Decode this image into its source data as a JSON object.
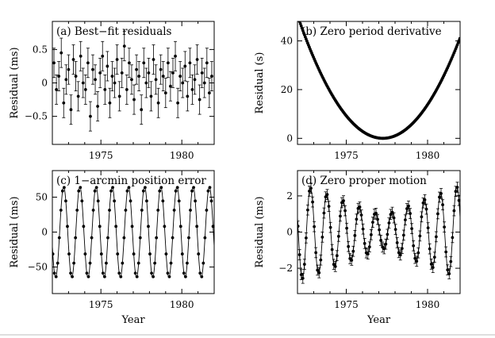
{
  "chart_data": [
    {
      "id": "a",
      "type": "scatter",
      "title": "(a) Best−fit residuals",
      "xlabel": "",
      "ylabel": "Residual (ms)",
      "xlim": [
        1972.0,
        1982.0
      ],
      "ylim": [
        -0.92,
        0.92
      ],
      "xticks": [
        1975,
        1980
      ],
      "yticks": [
        0.5,
        0,
        -0.5
      ],
      "xticklabels": [
        "1975",
        "1980"
      ],
      "yticklabels": [
        "0.5",
        "0",
        "−0.5"
      ],
      "model": {
        "kind": "noise",
        "amplitude": 0.0
      },
      "x": [
        1972.1,
        1972.25,
        1972.4,
        1972.55,
        1972.7,
        1972.85,
        1973.0,
        1973.15,
        1973.3,
        1973.45,
        1973.6,
        1973.75,
        1973.9,
        1974.05,
        1974.2,
        1974.35,
        1974.5,
        1974.65,
        1974.8,
        1974.95,
        1975.1,
        1975.25,
        1975.4,
        1975.55,
        1975.7,
        1975.85,
        1976.0,
        1976.15,
        1976.3,
        1976.45,
        1976.6,
        1976.75,
        1976.9,
        1977.05,
        1977.2,
        1977.35,
        1977.5,
        1977.65,
        1977.8,
        1977.95,
        1978.1,
        1978.25,
        1978.4,
        1978.55,
        1978.7,
        1978.85,
        1979.0,
        1979.15,
        1979.3,
        1979.45,
        1979.6,
        1979.75,
        1979.9,
        1980.05,
        1980.2,
        1980.35,
        1980.5,
        1980.65,
        1980.8,
        1980.95,
        1981.1,
        1981.25,
        1981.4,
        1981.55,
        1981.7,
        1981.85
      ],
      "y": [
        0.3,
        -0.1,
        0.1,
        0.45,
        -0.3,
        0.05,
        0.2,
        -0.4,
        0.35,
        0.1,
        -0.2,
        0.4,
        0.0,
        -0.1,
        0.3,
        -0.5,
        0.2,
        0.05,
        -0.35,
        0.15,
        0.4,
        -0.1,
        0.25,
        -0.3,
        0.1,
        0.0,
        0.35,
        -0.2,
        0.15,
        0.55,
        -0.1,
        0.3,
        0.05,
        -0.25,
        0.2,
        0.1,
        -0.4,
        0.3,
        0.0,
        0.15,
        -0.2,
        0.35,
        0.05,
        -0.3,
        0.2,
        0.1,
        -0.15,
        0.3,
        -0.05,
        0.15,
        0.4,
        -0.3,
        0.1,
        0.0,
        0.25,
        -0.2,
        0.3,
        -0.1,
        0.05,
        0.35,
        -0.25,
        0.15,
        0.0,
        0.3,
        -0.15,
        0.1
      ],
      "yerr": 0.22
    },
    {
      "id": "b",
      "type": "scatter",
      "title": "(b) Zero period derivative",
      "xlabel": "",
      "ylabel": "Residual (s)",
      "xlim": [
        1972.0,
        1982.0
      ],
      "ylim": [
        -2.5,
        48.0
      ],
      "xticks": [
        1975,
        1980
      ],
      "yticks": [
        40,
        20,
        0
      ],
      "xticklabels": [
        "1975",
        "1980"
      ],
      "yticklabels": [
        "40",
        "20",
        "0"
      ],
      "model": {
        "kind": "parabola",
        "x0": 1977.25,
        "a": 1.83
      },
      "yerr": 0
    },
    {
      "id": "c",
      "type": "line",
      "title": "(c) 1−arcmin position error",
      "xlabel": "Year",
      "ylabel": "Residual (ms)",
      "xlim": [
        1972.0,
        1982.0
      ],
      "ylim": [
        -88,
        88
      ],
      "xticks": [
        1975,
        1980
      ],
      "yticks": [
        50,
        0,
        -50
      ],
      "xticklabels": [
        "1975",
        "1980"
      ],
      "yticklabels": [
        "50",
        "0",
        "−50"
      ],
      "model": {
        "kind": "sine",
        "amplitude": 65,
        "period_years": 1.0,
        "phase_years": 1972.45
      },
      "yerr": 0
    },
    {
      "id": "d",
      "type": "line",
      "title": "(d) Zero proper motion",
      "xlabel": "Year",
      "ylabel": "Residual (ms)",
      "xlim": [
        1972.0,
        1982.0
      ],
      "ylim": [
        -3.4,
        3.4
      ],
      "xticks": [
        1975,
        1980
      ],
      "yticks": [
        2,
        0,
        -2
      ],
      "xticklabels": [
        "1975",
        "1980"
      ],
      "yticklabels": [
        "2",
        "0",
        "−2"
      ],
      "model": {
        "kind": "beat",
        "amplitude": 2.6,
        "period_years": 1.0,
        "phase_years": 1972.55,
        "null_year": 1977.25
      },
      "yerr": 0.28
    }
  ]
}
